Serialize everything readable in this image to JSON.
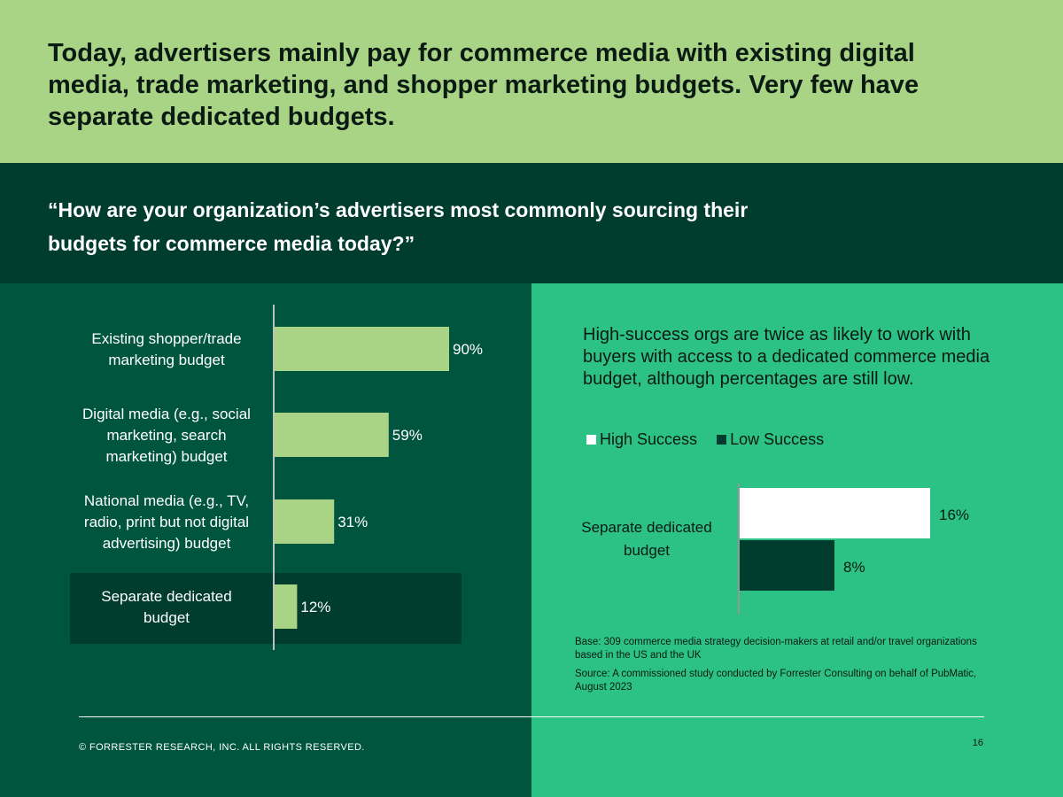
{
  "header": {
    "title": "Today, advertisers mainly pay for commerce media with existing digital media, trade marketing, and shopper marketing budgets. Very few have separate dedicated budgets."
  },
  "question": {
    "text": "“How are your organization’s advertisers most commonly sourcing their budgets for commerce media today?”"
  },
  "colors": {
    "header_bg": "#A9D486",
    "question_bg": "#003D2E",
    "left_bg": "#00553E",
    "right_bg": "#2DC285",
    "bar_left": "#A9D486",
    "highlight_row": "#003D2E",
    "high_success": "#FFFFFF",
    "low_success": "#003D2E"
  },
  "chart_data": [
    {
      "type": "bar",
      "orientation": "horizontal",
      "categories": [
        [
          "Existing shopper/trade",
          "marketing budget"
        ],
        [
          "Digital media (e.g., social",
          "marketing, search",
          "marketing) budget"
        ],
        [
          "National media (e.g., TV,",
          "radio, print but not digital",
          "advertising) budget"
        ],
        [
          "Separate dedicated",
          "budget"
        ]
      ],
      "values": [
        90,
        59,
        31,
        12
      ],
      "value_labels": [
        "90%",
        "59%",
        "31%",
        "12%"
      ],
      "highlight_index": 3,
      "xlim": [
        0,
        100
      ],
      "title": "",
      "xlabel": "",
      "ylabel": "",
      "grid": false,
      "legend": "none"
    },
    {
      "type": "bar",
      "orientation": "horizontal",
      "categories": [
        [
          "Separate dedicated",
          "budget"
        ]
      ],
      "series": [
        {
          "name": "High Success",
          "values": [
            16
          ],
          "value_labels": [
            "16%"
          ],
          "color": "#FFFFFF"
        },
        {
          "name": "Low Success",
          "values": [
            8
          ],
          "value_labels": [
            "8%"
          ],
          "color": "#003D2E"
        }
      ],
      "xlim": [
        0,
        100
      ],
      "title": "",
      "xlabel": "",
      "ylabel": "",
      "grid": false,
      "legend": "top-left"
    }
  ],
  "callout": {
    "text": "High-success orgs are twice as likely to work with buyers with access to a dedicated commerce media budget, although percentages are still low."
  },
  "legend": {
    "high": "High Success",
    "low": "Low Success"
  },
  "notes": {
    "base": "Base: 309 commerce media strategy decision-makers at retail and/or travel organizations based in the US and the UK",
    "source": "Source: A commissioned study conducted by Forrester Consulting on behalf of PubMatic, August 2023"
  },
  "footer": {
    "copyright": "© FORRESTER RESEARCH, INC. ALL RIGHTS RESERVED.",
    "page_number": "16"
  }
}
